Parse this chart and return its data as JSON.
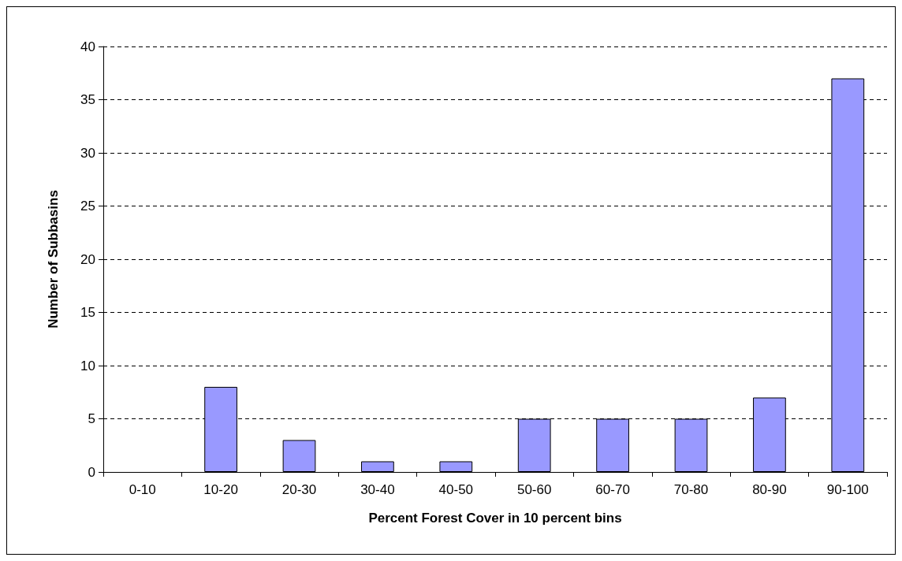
{
  "chart_data": {
    "type": "bar",
    "xlabel": "Percent Forest Cover in 10 percent bins",
    "ylabel": "Number of Subbasins",
    "categories": [
      "0-10",
      "10-20",
      "20-30",
      "30-40",
      "40-50",
      "50-60",
      "60-70",
      "70-80",
      "80-90",
      "90-100"
    ],
    "values": [
      0,
      8,
      3,
      1,
      1,
      5,
      5,
      5,
      7,
      37
    ],
    "color": "#9999ff",
    "ylim": [
      0,
      40
    ],
    "yticks": [
      0,
      5,
      10,
      15,
      20,
      25,
      30,
      35,
      40
    ],
    "grid": "y"
  }
}
